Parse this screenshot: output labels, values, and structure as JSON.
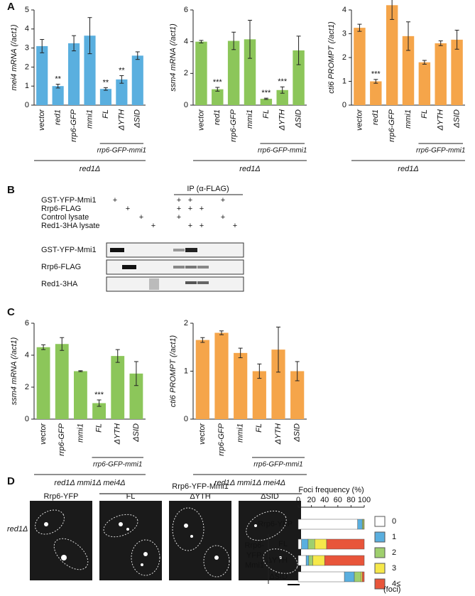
{
  "panels": [
    "A",
    "B",
    "C",
    "D"
  ],
  "chart_data": [
    {
      "type": "bar",
      "ylabel": "mei4 mRNA (/act1)",
      "color": "#5aafdf",
      "categories": [
        "vector",
        "red1",
        "rrp6-GFP",
        "mmi1",
        "FL",
        "ΔYTH",
        "ΔSID"
      ],
      "values": [
        3.1,
        1.0,
        3.25,
        3.65,
        0.85,
        1.35,
        2.6
      ],
      "errors": [
        0.35,
        0.1,
        0.4,
        0.95,
        0.07,
        0.2,
        0.2
      ],
      "annotations": [
        null,
        "**",
        null,
        null,
        "**",
        "**",
        null
      ],
      "ylim": [
        0,
        5
      ],
      "yticks": [
        0,
        1,
        2,
        3,
        4,
        5
      ],
      "group_label": "rrp6-GFP-mmi1",
      "strain": "red1Δ"
    },
    {
      "type": "bar",
      "ylabel": "ssm4 mRNA (/act1)",
      "color": "#8cc65a",
      "categories": [
        "vector",
        "red1",
        "rrp6-GFP",
        "mmi1",
        "FL",
        "ΔYTH",
        "ΔSID"
      ],
      "values": [
        4.0,
        1.0,
        4.05,
        4.15,
        0.4,
        0.95,
        3.45
      ],
      "errors": [
        0.08,
        0.12,
        0.55,
        1.2,
        0.04,
        0.2,
        0.9
      ],
      "annotations": [
        null,
        "***",
        null,
        null,
        "***",
        "***",
        null
      ],
      "ylim": [
        0,
        6
      ],
      "yticks": [
        0,
        2,
        4,
        6
      ],
      "group_label": "rrp6-GFP-mmi1",
      "strain": "red1Δ"
    },
    {
      "type": "bar",
      "ylabel": "cti6 PROMPT (/act1)",
      "color": "#f5a54a",
      "categories": [
        "vector",
        "red1",
        "rrp6-GFP",
        "mmi1",
        "FL",
        "ΔYTH",
        "ΔSID"
      ],
      "values": [
        3.25,
        1.0,
        4.2,
        2.9,
        1.8,
        2.6,
        2.75
      ],
      "errors": [
        0.15,
        0.08,
        0.6,
        0.6,
        0.08,
        0.1,
        0.4
      ],
      "annotations": [
        null,
        "***",
        null,
        null,
        null,
        null,
        null
      ],
      "ylim": [
        0,
        4
      ],
      "yticks": [
        0,
        1,
        2,
        3,
        4
      ],
      "group_label": "rrp6-GFP-mmi1",
      "strain": "red1Δ"
    },
    {
      "type": "bar",
      "ylabel": "ssm4 mRNA (/act1)",
      "color": "#8cc65a",
      "categories": [
        "vector",
        "rrp6-GFP",
        "mmi1",
        "FL",
        "ΔYTH",
        "ΔSID"
      ],
      "values": [
        4.5,
        4.7,
        3.0,
        1.0,
        3.95,
        2.85
      ],
      "errors": [
        0.15,
        0.4,
        0.03,
        0.2,
        0.4,
        0.75
      ],
      "annotations": [
        null,
        null,
        null,
        "***",
        null,
        null
      ],
      "ylim": [
        0,
        6
      ],
      "yticks": [
        0,
        2,
        4,
        6
      ],
      "group_label": "rrp6-GFP-mmi1",
      "strain": "red1Δ mmi1Δ mei4Δ"
    },
    {
      "type": "bar",
      "ylabel": "cti6 PROMPT (/act1)",
      "color": "#f5a54a",
      "categories": [
        "vector",
        "rrp6-GFP",
        "mmi1",
        "FL",
        "ΔYTH",
        "ΔSID"
      ],
      "values": [
        1.65,
        1.8,
        1.38,
        1.0,
        1.45,
        1.0
      ],
      "errors": [
        0.05,
        0.04,
        0.1,
        0.15,
        0.47,
        0.2
      ],
      "annotations": [
        null,
        null,
        null,
        null,
        null,
        null
      ],
      "ylim": [
        0,
        2
      ],
      "yticks": [
        0,
        1,
        2
      ],
      "group_label": "rrp6-GFP-mmi1",
      "strain": "red1Δ mmi1Δ mei4Δ"
    },
    {
      "type": "stacked-barh",
      "xlabel": "Foci frequency (%)",
      "unit_label": "(foci)",
      "categories": [
        "Rrp6-YFP",
        "FL",
        "ΔYTH",
        "ΔSID"
      ],
      "group_label_lines": [
        "Rrp6-",
        "YFP-",
        "Mmi1"
      ],
      "xlim": [
        0,
        100
      ],
      "xticks": [
        0,
        20,
        40,
        60,
        80,
        100
      ],
      "series": [
        {
          "name": "0",
          "color": "#ffffff",
          "values": [
            90,
            5,
            12,
            70
          ]
        },
        {
          "name": "1",
          "color": "#5aafdf",
          "values": [
            7,
            10,
            4,
            15
          ]
        },
        {
          "name": "2",
          "color": "#9fcf6e",
          "values": [
            2,
            10,
            6,
            10
          ]
        },
        {
          "name": "3",
          "color": "#f6e84a",
          "values": [
            1,
            18,
            18,
            2
          ]
        },
        {
          "name": "4≤",
          "color": "#e8553a",
          "values": [
            0,
            57,
            60,
            3
          ]
        }
      ]
    }
  ],
  "blot": {
    "header": "IP (α-FLAG)",
    "rows": [
      {
        "label": "GST-YFP-Mmi1",
        "marks": [
          "+",
          null,
          null,
          null,
          "+",
          "+",
          null,
          "+",
          null
        ]
      },
      {
        "label": "Rrp6-FLAG",
        "marks": [
          null,
          "+",
          null,
          null,
          "+",
          "+",
          "+",
          null,
          null
        ]
      },
      {
        "label": "Control lysate",
        "marks": [
          null,
          null,
          "+",
          null,
          "+",
          null,
          null,
          "+",
          null
        ]
      },
      {
        "label": "Red1-3HA lysate",
        "marks": [
          null,
          null,
          null,
          "+",
          null,
          "+",
          "+",
          null,
          "+"
        ]
      }
    ],
    "bands": [
      "GST-YFP-Mmi1",
      "Rrp6-FLAG",
      "Red1-3HA"
    ]
  },
  "micrographs": {
    "group": "Rrp6-YFP-Mmi1",
    "panels": [
      "Rrp6-YFP",
      "FL",
      "ΔYTH",
      "ΔSID"
    ],
    "row_label": "red1Δ"
  }
}
